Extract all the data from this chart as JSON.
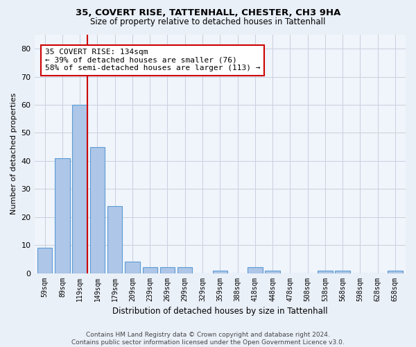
{
  "title1": "35, COVERT RISE, TATTENHALL, CHESTER, CH3 9HA",
  "title2": "Size of property relative to detached houses in Tattenhall",
  "xlabel": "Distribution of detached houses by size in Tattenhall",
  "ylabel": "Number of detached properties",
  "categories": [
    "59sqm",
    "89sqm",
    "119sqm",
    "149sqm",
    "179sqm",
    "209sqm",
    "239sqm",
    "269sqm",
    "299sqm",
    "329sqm",
    "359sqm",
    "388sqm",
    "418sqm",
    "448sqm",
    "478sqm",
    "508sqm",
    "538sqm",
    "568sqm",
    "598sqm",
    "628sqm",
    "658sqm"
  ],
  "values": [
    9,
    41,
    60,
    45,
    24,
    4,
    2,
    2,
    2,
    0,
    1,
    0,
    2,
    1,
    0,
    0,
    1,
    1,
    0,
    0,
    1
  ],
  "bar_color": "#aec6e8",
  "bar_edge_color": "#5b9bd5",
  "vline_x": 2.425,
  "vline_color": "#cc0000",
  "annotation_text": "35 COVERT RISE: 134sqm\n← 39% of detached houses are smaller (76)\n58% of semi-detached houses are larger (113) →",
  "annotation_box_color": "white",
  "annotation_box_edge": "#cc0000",
  "ylim": [
    0,
    85
  ],
  "yticks": [
    0,
    10,
    20,
    30,
    40,
    50,
    60,
    70,
    80
  ],
  "footnote": "Contains HM Land Registry data © Crown copyright and database right 2024.\nContains public sector information licensed under the Open Government Licence v3.0.",
  "bg_color": "#eaf0f8",
  "plot_bg_color": "#f0f4fb",
  "grid_color": "#c8d0de",
  "title1_fontsize": 9.5,
  "title2_fontsize": 8.5
}
